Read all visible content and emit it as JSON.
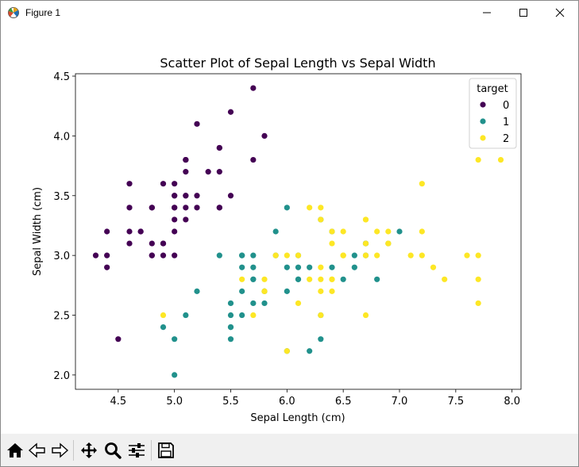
{
  "window": {
    "title": "Figure 1"
  },
  "chart_data": {
    "type": "scatter",
    "title": "Scatter Plot of Sepal Length vs Sepal Width",
    "xlabel": "Sepal Length (cm)",
    "ylabel": "Sepal Width (cm)",
    "xlim": [
      4.12,
      8.08
    ],
    "ylim": [
      1.88,
      4.52
    ],
    "xticks": [
      4.5,
      5.0,
      5.5,
      6.0,
      6.5,
      7.0,
      7.5,
      8.0
    ],
    "xtick_labels": [
      "4.5",
      "5.0",
      "5.5",
      "6.0",
      "6.5",
      "7.0",
      "7.5",
      "8.0"
    ],
    "yticks": [
      2.0,
      2.5,
      3.0,
      3.5,
      4.0,
      4.5
    ],
    "ytick_labels": [
      "2.0",
      "2.5",
      "3.0",
      "3.5",
      "4.0",
      "4.5"
    ],
    "grid": false,
    "legend": {
      "title": "target",
      "placement": "top-right"
    },
    "series": [
      {
        "name": "0",
        "color": "#440154",
        "points": [
          [
            5.1,
            3.5
          ],
          [
            4.9,
            3.0
          ],
          [
            4.7,
            3.2
          ],
          [
            4.6,
            3.1
          ],
          [
            5.0,
            3.6
          ],
          [
            5.4,
            3.9
          ],
          [
            4.6,
            3.4
          ],
          [
            5.0,
            3.4
          ],
          [
            4.4,
            2.9
          ],
          [
            4.9,
            3.1
          ],
          [
            5.4,
            3.7
          ],
          [
            4.8,
            3.4
          ],
          [
            4.8,
            3.0
          ],
          [
            4.3,
            3.0
          ],
          [
            5.8,
            4.0
          ],
          [
            5.7,
            4.4
          ],
          [
            5.4,
            3.9
          ],
          [
            5.1,
            3.5
          ],
          [
            5.7,
            3.8
          ],
          [
            5.1,
            3.8
          ],
          [
            5.4,
            3.4
          ],
          [
            5.1,
            3.7
          ],
          [
            4.6,
            3.6
          ],
          [
            5.1,
            3.3
          ],
          [
            4.8,
            3.4
          ],
          [
            5.0,
            3.0
          ],
          [
            5.0,
            3.4
          ],
          [
            5.2,
            3.5
          ],
          [
            5.2,
            3.4
          ],
          [
            4.7,
            3.2
          ],
          [
            4.8,
            3.1
          ],
          [
            5.4,
            3.4
          ],
          [
            5.2,
            4.1
          ],
          [
            5.5,
            4.2
          ],
          [
            4.9,
            3.1
          ],
          [
            5.0,
            3.2
          ],
          [
            5.5,
            3.5
          ],
          [
            4.9,
            3.6
          ],
          [
            4.4,
            3.0
          ],
          [
            5.1,
            3.4
          ],
          [
            5.0,
            3.5
          ],
          [
            4.5,
            2.3
          ],
          [
            4.4,
            3.2
          ],
          [
            5.0,
            3.5
          ],
          [
            5.1,
            3.8
          ],
          [
            4.8,
            3.0
          ],
          [
            5.1,
            3.8
          ],
          [
            4.6,
            3.2
          ],
          [
            5.3,
            3.7
          ],
          [
            5.0,
            3.3
          ]
        ]
      },
      {
        "name": "1",
        "color": "#21918c",
        "points": [
          [
            7.0,
            3.2
          ],
          [
            6.4,
            3.2
          ],
          [
            6.9,
            3.1
          ],
          [
            5.5,
            2.3
          ],
          [
            6.5,
            2.8
          ],
          [
            5.7,
            2.8
          ],
          [
            6.3,
            3.3
          ],
          [
            4.9,
            2.4
          ],
          [
            6.6,
            2.9
          ],
          [
            5.2,
            2.7
          ],
          [
            5.0,
            2.0
          ],
          [
            5.9,
            3.0
          ],
          [
            6.0,
            2.2
          ],
          [
            6.1,
            2.9
          ],
          [
            5.6,
            2.9
          ],
          [
            6.7,
            3.1
          ],
          [
            5.6,
            3.0
          ],
          [
            5.8,
            2.7
          ],
          [
            6.2,
            2.2
          ],
          [
            5.6,
            2.5
          ],
          [
            5.9,
            3.2
          ],
          [
            6.1,
            2.8
          ],
          [
            6.3,
            2.5
          ],
          [
            6.1,
            2.8
          ],
          [
            6.4,
            2.9
          ],
          [
            6.6,
            3.0
          ],
          [
            6.8,
            2.8
          ],
          [
            6.7,
            3.0
          ],
          [
            6.0,
            2.9
          ],
          [
            5.7,
            2.6
          ],
          [
            5.5,
            2.4
          ],
          [
            5.5,
            2.4
          ],
          [
            5.8,
            2.7
          ],
          [
            6.0,
            2.7
          ],
          [
            5.4,
            3.0
          ],
          [
            6.0,
            3.4
          ],
          [
            6.7,
            3.1
          ],
          [
            6.3,
            2.3
          ],
          [
            5.6,
            3.0
          ],
          [
            5.5,
            2.5
          ],
          [
            5.5,
            2.6
          ],
          [
            6.1,
            3.0
          ],
          [
            5.8,
            2.6
          ],
          [
            5.0,
            2.3
          ],
          [
            5.6,
            2.7
          ],
          [
            5.7,
            3.0
          ],
          [
            5.7,
            2.9
          ],
          [
            6.2,
            2.9
          ],
          [
            5.1,
            2.5
          ],
          [
            5.7,
            2.8
          ]
        ]
      },
      {
        "name": "2",
        "color": "#fde725",
        "points": [
          [
            6.3,
            3.3
          ],
          [
            5.8,
            2.7
          ],
          [
            7.1,
            3.0
          ],
          [
            6.3,
            2.9
          ],
          [
            6.5,
            3.0
          ],
          [
            7.6,
            3.0
          ],
          [
            4.9,
            2.5
          ],
          [
            7.3,
            2.9
          ],
          [
            6.7,
            2.5
          ],
          [
            7.2,
            3.6
          ],
          [
            6.5,
            3.2
          ],
          [
            6.4,
            2.7
          ],
          [
            6.8,
            3.0
          ],
          [
            5.7,
            2.5
          ],
          [
            5.8,
            2.8
          ],
          [
            6.4,
            3.2
          ],
          [
            6.5,
            3.0
          ],
          [
            7.7,
            3.8
          ],
          [
            7.7,
            2.6
          ],
          [
            6.0,
            2.2
          ],
          [
            6.9,
            3.2
          ],
          [
            5.6,
            2.8
          ],
          [
            7.7,
            2.8
          ],
          [
            6.3,
            2.7
          ],
          [
            6.7,
            3.3
          ],
          [
            7.2,
            3.2
          ],
          [
            6.2,
            2.8
          ],
          [
            6.1,
            3.0
          ],
          [
            6.4,
            2.8
          ],
          [
            7.2,
            3.0
          ],
          [
            7.4,
            2.8
          ],
          [
            7.9,
            3.8
          ],
          [
            6.4,
            2.8
          ],
          [
            6.3,
            2.8
          ],
          [
            6.1,
            2.6
          ],
          [
            7.7,
            3.0
          ],
          [
            6.3,
            3.4
          ],
          [
            6.4,
            3.1
          ],
          [
            6.0,
            3.0
          ],
          [
            6.9,
            3.1
          ],
          [
            6.7,
            3.1
          ],
          [
            6.9,
            3.1
          ],
          [
            5.8,
            2.7
          ],
          [
            6.8,
            3.2
          ],
          [
            6.7,
            3.3
          ],
          [
            6.7,
            3.0
          ],
          [
            6.3,
            2.5
          ],
          [
            6.5,
            3.0
          ],
          [
            6.2,
            3.4
          ],
          [
            5.9,
            3.0
          ]
        ]
      }
    ]
  },
  "toolbar": {
    "icons": [
      "home-icon",
      "back-icon",
      "forward-icon",
      "pan-icon",
      "zoom-icon",
      "configure-subplots-icon",
      "save-icon"
    ]
  }
}
